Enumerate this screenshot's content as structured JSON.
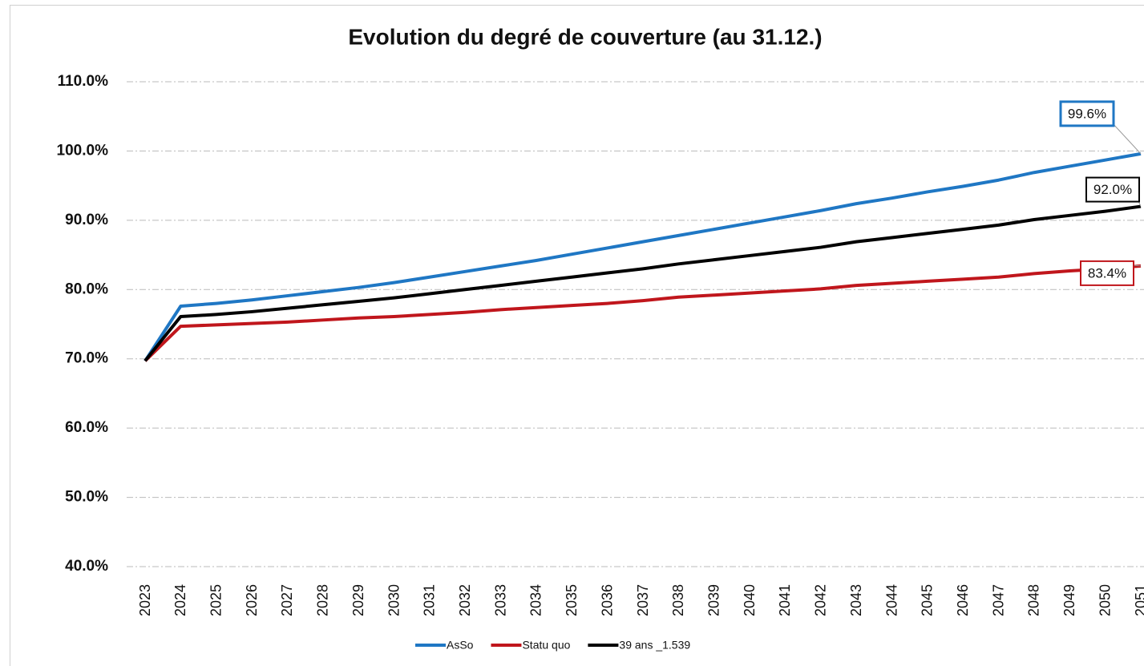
{
  "chart_data": {
    "type": "line",
    "title": "Evolution du degré de couverture (au 31.12.)",
    "categories": [
      "2023",
      "2024",
      "2025",
      "2026",
      "2027",
      "2028",
      "2029",
      "2030",
      "2031",
      "2032",
      "2033",
      "2034",
      "2035",
      "2036",
      "2037",
      "2038",
      "2039",
      "2040",
      "2041",
      "2042",
      "2043",
      "2044",
      "2045",
      "2046",
      "2047",
      "2048",
      "2049",
      "2050",
      "2051"
    ],
    "series": [
      {
        "name": "AsSo",
        "color": "#1f77c4",
        "values": [
          69.7,
          77.6,
          78.0,
          78.5,
          79.1,
          79.7,
          80.3,
          81.0,
          81.8,
          82.6,
          83.4,
          84.2,
          85.1,
          86.0,
          86.9,
          87.8,
          88.7,
          89.6,
          90.5,
          91.4,
          92.4,
          93.2,
          94.1,
          94.9,
          95.8,
          96.9,
          97.8,
          98.7,
          99.6
        ],
        "value_labels": [
          null,
          null,
          null,
          null,
          null,
          null,
          null,
          null,
          null,
          null,
          null,
          null,
          null,
          null,
          null,
          null,
          null,
          null,
          null,
          null,
          null,
          null,
          null,
          null,
          null,
          null,
          null,
          null,
          "99.6%"
        ]
      },
      {
        "name": "Statu quo",
        "color": "#c0161c",
        "values": [
          69.7,
          74.7,
          74.9,
          75.1,
          75.3,
          75.6,
          75.9,
          76.1,
          76.4,
          76.7,
          77.1,
          77.4,
          77.7,
          78.0,
          78.4,
          78.9,
          79.2,
          79.5,
          79.8,
          80.1,
          80.6,
          80.9,
          81.2,
          81.5,
          81.8,
          82.3,
          82.7,
          83.0,
          83.4
        ],
        "value_labels": [
          null,
          null,
          null,
          null,
          null,
          null,
          null,
          null,
          null,
          null,
          null,
          null,
          null,
          null,
          null,
          null,
          null,
          null,
          null,
          null,
          null,
          null,
          null,
          null,
          null,
          null,
          null,
          null,
          "83.4%"
        ]
      },
      {
        "name": "39 ans _1.539",
        "color": "#000000",
        "values": [
          69.7,
          76.1,
          76.4,
          76.8,
          77.3,
          77.8,
          78.3,
          78.8,
          79.4,
          80.0,
          80.6,
          81.2,
          81.8,
          82.4,
          83.0,
          83.7,
          84.3,
          84.9,
          85.5,
          86.1,
          86.9,
          87.5,
          88.1,
          88.7,
          89.3,
          90.1,
          90.7,
          91.3,
          92.0
        ],
        "value_labels": [
          null,
          null,
          null,
          null,
          null,
          null,
          null,
          null,
          null,
          null,
          null,
          null,
          null,
          null,
          null,
          null,
          null,
          null,
          null,
          null,
          null,
          null,
          null,
          null,
          null,
          null,
          null,
          null,
          "92.0%"
        ]
      }
    ],
    "ylim": [
      40,
      110
    ],
    "yticks": [
      {
        "value": 40,
        "label": "40.0%"
      },
      {
        "value": 50,
        "label": "50.0%"
      },
      {
        "value": 60,
        "label": "60.0%"
      },
      {
        "value": 70,
        "label": "70.0%"
      },
      {
        "value": 80,
        "label": "80.0%"
      },
      {
        "value": 90,
        "label": "90.0%"
      },
      {
        "value": 100,
        "label": "100.0%"
      },
      {
        "value": 110,
        "label": "110.0%"
      }
    ],
    "grid": true,
    "legend": "bottom"
  }
}
